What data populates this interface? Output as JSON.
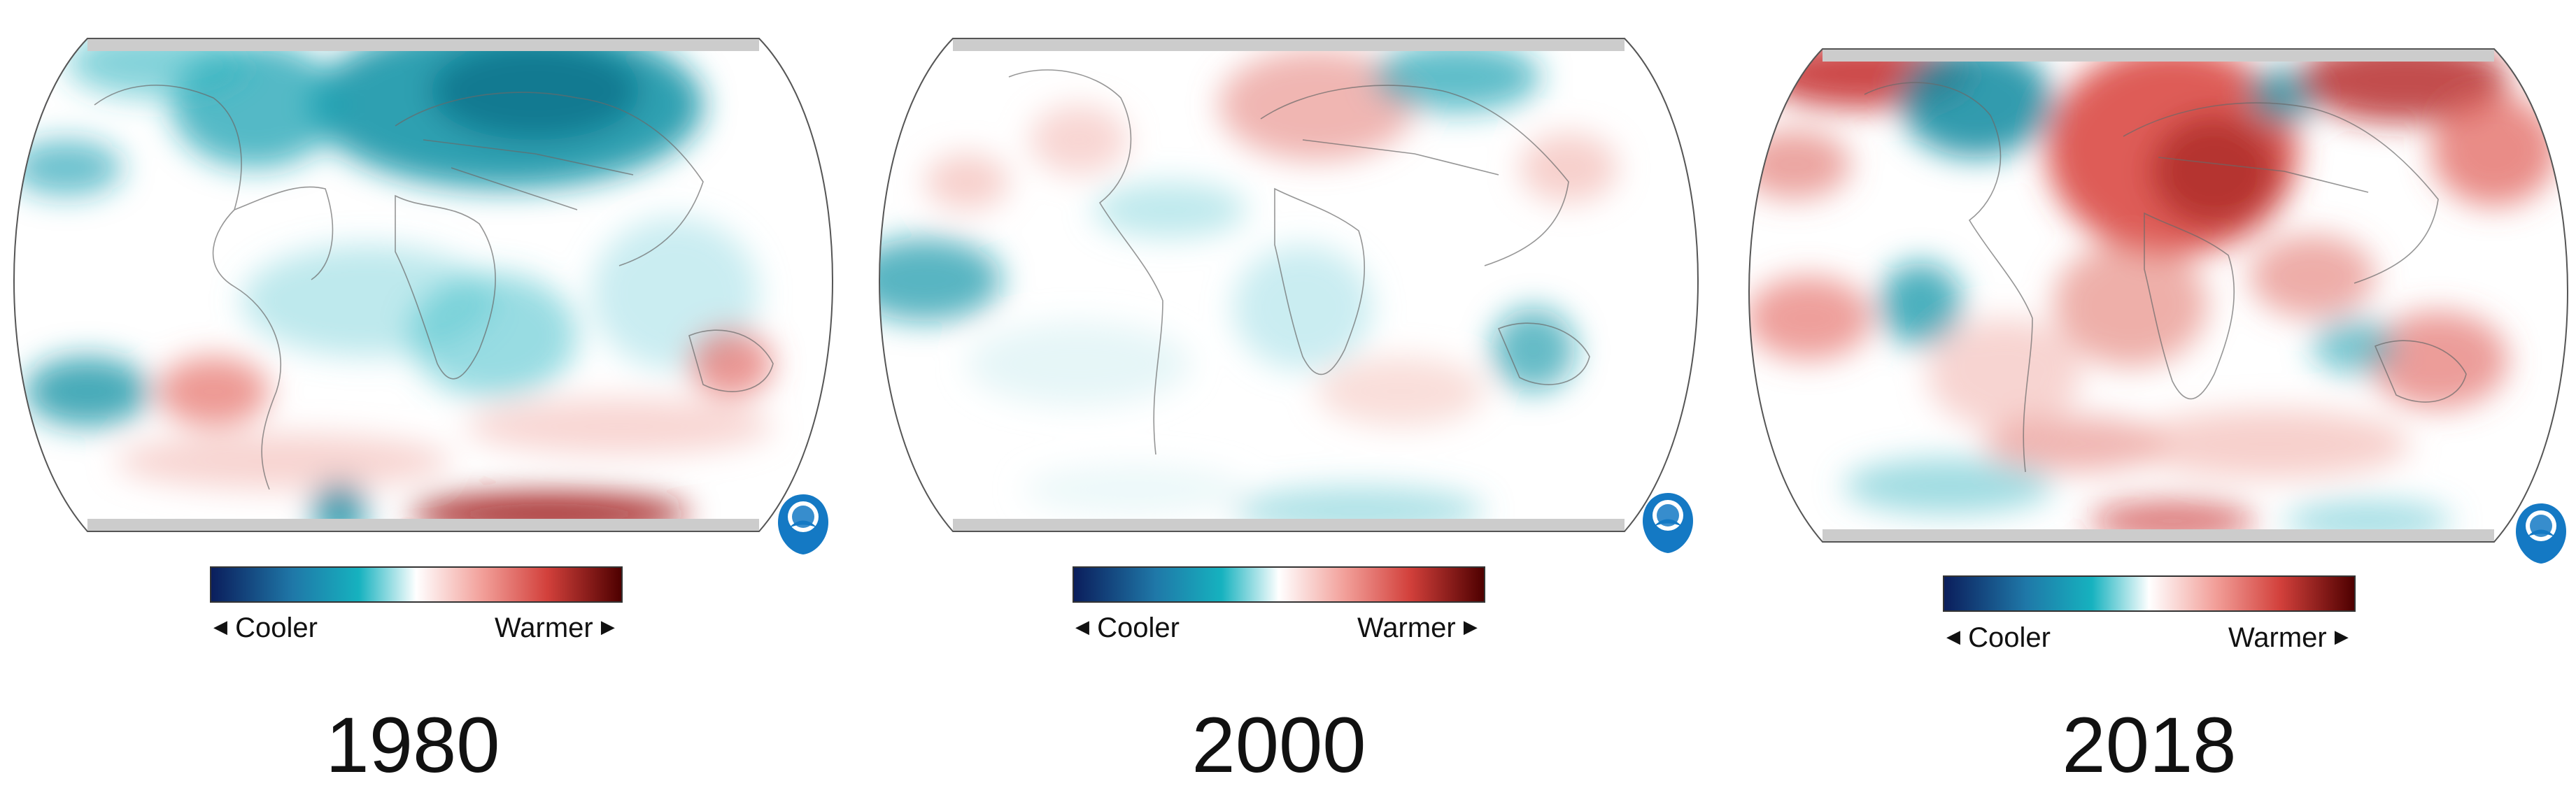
{
  "colors": {
    "scale": [
      "#0b1e5c",
      "#1f78a8",
      "#16a7b7",
      "#ffffff",
      "#f2a6a0",
      "#d84a45",
      "#5a0000"
    ],
    "cool": "#13a3b4",
    "warm": "#d8403a",
    "cap": "#cccccc",
    "noaa_blue": "#1479c4"
  },
  "panels": [
    {
      "year": "1980",
      "legend": {
        "cooler": "Cooler",
        "warmer": "Warmer"
      },
      "logo": "noaa-logo"
    },
    {
      "year": "2000",
      "legend": {
        "cooler": "Cooler",
        "warmer": "Warmer"
      },
      "logo": "noaa-logo"
    },
    {
      "year": "2018",
      "legend": {
        "cooler": "Cooler",
        "warmer": "Warmer"
      },
      "logo": "noaa-logo"
    }
  ]
}
